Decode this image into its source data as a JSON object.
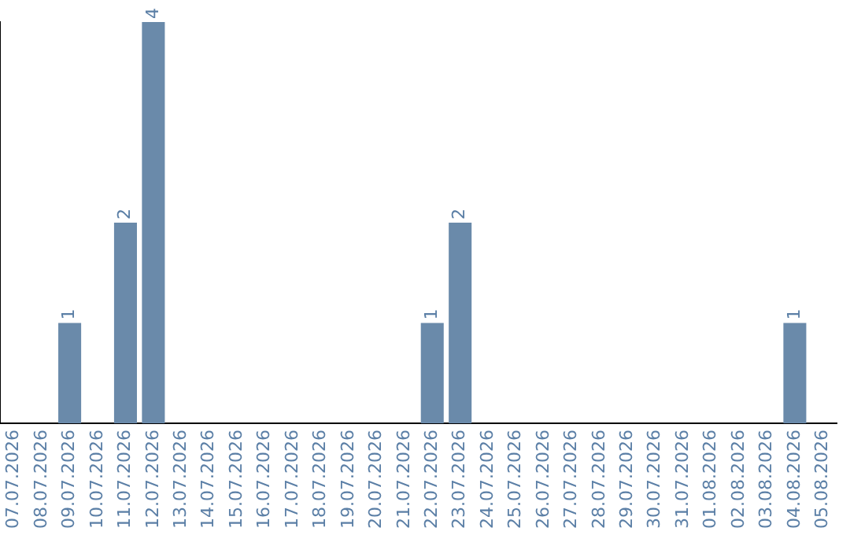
{
  "chart_data": {
    "type": "bar",
    "categories": [
      "07.07.2026",
      "08.07.2026",
      "09.07.2026",
      "10.07.2026",
      "11.07.2026",
      "12.07.2026",
      "13.07.2026",
      "14.07.2026",
      "15.07.2026",
      "16.07.2026",
      "17.07.2026",
      "18.07.2026",
      "19.07.2026",
      "20.07.2026",
      "21.07.2026",
      "22.07.2026",
      "23.07.2026",
      "24.07.2026",
      "25.07.2026",
      "26.07.2026",
      "27.07.2026",
      "28.07.2026",
      "29.07.2026",
      "30.07.2026",
      "31.07.2026",
      "01.08.2026",
      "02.08.2026",
      "03.08.2026",
      "04.08.2026",
      "05.08.2026"
    ],
    "values": [
      0,
      0,
      1,
      0,
      2,
      4,
      0,
      0,
      0,
      0,
      0,
      0,
      0,
      0,
      0,
      1,
      2,
      0,
      0,
      0,
      0,
      0,
      0,
      0,
      0,
      0,
      0,
      0,
      1,
      0
    ],
    "value_labels": [
      null,
      null,
      "1",
      null,
      "2",
      "4",
      null,
      null,
      null,
      null,
      null,
      null,
      null,
      null,
      null,
      "1",
      "2",
      null,
      null,
      null,
      null,
      null,
      null,
      null,
      null,
      null,
      null,
      null,
      "1",
      null
    ],
    "color": "#6a8aaa",
    "grid": false,
    "legend": false,
    "tick_labels": "x"
  }
}
